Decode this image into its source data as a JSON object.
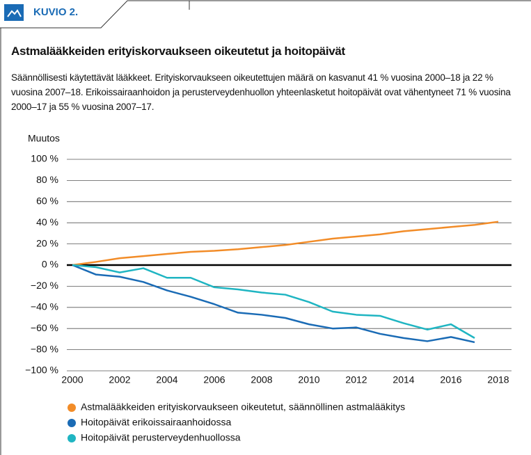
{
  "header": {
    "label": "KUVIO 2."
  },
  "chart_data": {
    "type": "line",
    "title": "Astmalääkkeiden erityiskorvaukseen oikeutetut ja hoitopäivät",
    "subtitle": "Säännöllisesti käytettävät lääkkeet. Erityiskorvaukseen oikeutettujen määrä on kasvanut 41 % vuosina 2000–18 ja 22 % vuosina 2007–18. Erikoissairaanhoidon ja perusterveydenhuollon yhteenlasketut hoitopäivät ovat vähentyneet 71 % vuosina 2000–17 ja 55 % vuosina 2007–17.",
    "y_label": "Muutos",
    "x": [
      2000,
      2001,
      2002,
      2003,
      2004,
      2005,
      2006,
      2007,
      2008,
      2009,
      2010,
      2011,
      2012,
      2013,
      2014,
      2015,
      2016,
      2017,
      2018
    ],
    "series": [
      {
        "name": "Astmalääkkeiden erityiskorvaukseen oikeutetut, säännöllinen astmalääkitys",
        "color": "#f28c28",
        "values": [
          0,
          3,
          6.5,
          8.5,
          10.5,
          12.5,
          13.5,
          15,
          17,
          19,
          22,
          25,
          27,
          29,
          32,
          34,
          36,
          38,
          41
        ]
      },
      {
        "name": "Hoitopäivät erikoissairaanhoidossa",
        "color": "#1a6bb5",
        "values": [
          0,
          -9,
          -11,
          -16,
          -24,
          -30,
          -37,
          -45,
          -47,
          -50,
          -56,
          -60,
          -59,
          -65,
          -69,
          -72,
          -68,
          -73,
          null
        ]
      },
      {
        "name": "Hoitopäivät perusterveydenhuollossa",
        "color": "#1fb5c2",
        "values": [
          0,
          -2,
          -7,
          -3,
          -12,
          -12,
          -21,
          -23,
          -26,
          -28,
          -35,
          -44,
          -47,
          -48,
          -55,
          -61,
          -56,
          -69,
          null
        ]
      }
    ],
    "xlim": [
      2000,
      2018
    ],
    "xticks": [
      2000,
      2002,
      2004,
      2006,
      2008,
      2010,
      2012,
      2014,
      2016,
      2018
    ],
    "ylim": [
      -100,
      100
    ],
    "yticks": [
      {
        "value": 100,
        "label": "100 %"
      },
      {
        "value": 80,
        "label": "80 %"
      },
      {
        "value": 60,
        "label": "60 %"
      },
      {
        "value": 40,
        "label": "40 %"
      },
      {
        "value": 20,
        "label": "20 %"
      },
      {
        "value": 0,
        "label": "0 %"
      },
      {
        "value": -20,
        "label": "−20 %"
      },
      {
        "value": -40,
        "label": "−40 %"
      },
      {
        "value": -60,
        "label": "−60 %"
      },
      {
        "value": -80,
        "label": "−80 %"
      },
      {
        "value": -100,
        "label": "−100 %"
      }
    ],
    "grid": true,
    "legend": "bottom"
  }
}
